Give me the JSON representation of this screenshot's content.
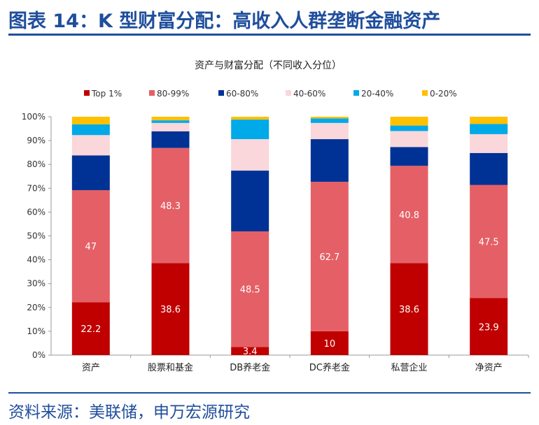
{
  "header": {
    "title": "图表 14：K 型财富分配：高收入人群垄断金融资产"
  },
  "footer": {
    "source": "资料来源：美联储，申万宏源研究"
  },
  "chart_data": {
    "type": "bar",
    "stacked": true,
    "title": "资产与财富分配（不同收入分位）",
    "categories": [
      "资产",
      "股票和基金",
      "DB养老金",
      "DC养老金",
      "私营企业",
      "净资产"
    ],
    "ylim": [
      0,
      100
    ],
    "yticks": [
      "0%",
      "10%",
      "20%",
      "30%",
      "40%",
      "50%",
      "60%",
      "70%",
      "80%",
      "90%",
      "100%"
    ],
    "legend_position": "top",
    "series": [
      {
        "name": "Top 1%",
        "color": "#c00000",
        "values": [
          22.2,
          38.6,
          3.4,
          10,
          38.6,
          23.9
        ],
        "labeled": true
      },
      {
        "name": "80-99%",
        "color": "#e46066",
        "values": [
          47,
          48.3,
          48.5,
          62.7,
          40.8,
          47.5
        ],
        "labeled": true
      },
      {
        "name": "60-80%",
        "color": "#003296",
        "values": [
          14.6,
          7.0,
          25.5,
          17.9,
          7.9,
          13.4
        ]
      },
      {
        "name": "40-60%",
        "color": "#fad7da",
        "values": [
          8.5,
          3.5,
          13.2,
          6.8,
          6.7,
          7.9
        ]
      },
      {
        "name": "20-40%",
        "color": "#00a9e8",
        "values": [
          4.5,
          1.1,
          8.2,
          1.9,
          2.3,
          4.3
        ]
      },
      {
        "name": "0-20%",
        "color": "#ffc000",
        "values": [
          3.2,
          1.5,
          1.2,
          0.7,
          3.7,
          3.0
        ]
      }
    ]
  }
}
